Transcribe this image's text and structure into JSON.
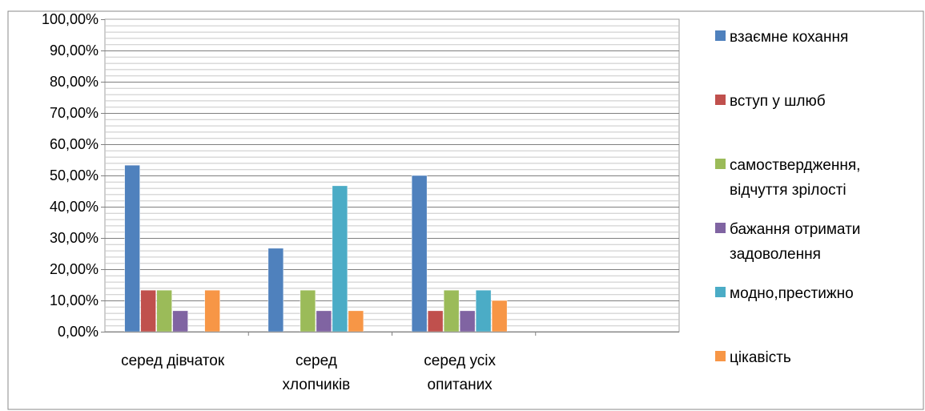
{
  "chart_data": {
    "type": "bar",
    "title": "",
    "xlabel": "",
    "ylabel": "",
    "ylim": [
      0,
      100
    ],
    "y_ticks": [
      "0,00%",
      "10,00%",
      "20,00%",
      "30,00%",
      "40,00%",
      "50,00%",
      "60,00%",
      "70,00%",
      "80,00%",
      "90,00%",
      "100,00%"
    ],
    "categories": [
      [
        "серед дівчаток"
      ],
      [
        "серед",
        "хлопчиків"
      ],
      [
        "серед усіх",
        "опитаних"
      ]
    ],
    "series": [
      {
        "name": [
          "взаємне кохання"
        ],
        "color": "#4F81BD",
        "values": [
          53.3,
          26.7,
          50.0
        ]
      },
      {
        "name": [
          "вступ у шлюб"
        ],
        "color": "#C0504D",
        "values": [
          13.3,
          0,
          6.7
        ]
      },
      {
        "name": [
          "самоствердження,",
          "відчуття зрілості"
        ],
        "color": "#9BBB59",
        "values": [
          13.3,
          13.3,
          13.3
        ]
      },
      {
        "name": [
          "бажання отримати",
          "задоволення"
        ],
        "color": "#8064A2",
        "values": [
          6.7,
          6.7,
          6.7
        ]
      },
      {
        "name": [
          "модно,престижно"
        ],
        "color": "#4BACC6",
        "values": [
          0,
          46.7,
          13.3
        ]
      },
      {
        "name": [
          "цікавість"
        ],
        "color": "#F79646",
        "values": [
          13.3,
          6.7,
          10.0
        ]
      }
    ],
    "grid": true,
    "legend_position": "right"
  }
}
